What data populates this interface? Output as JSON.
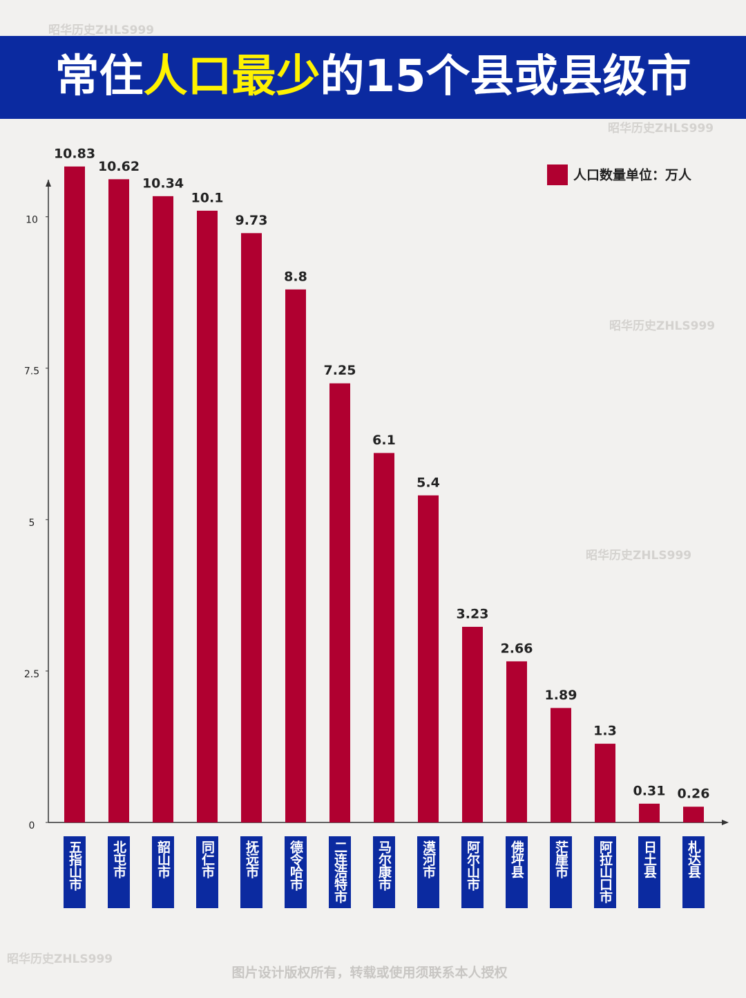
{
  "chart_data": {
    "type": "bar",
    "title_segments": [
      {
        "text": "常住",
        "color": "#ffffff"
      },
      {
        "text": "人口最少",
        "color": "#fff200"
      },
      {
        "text": "的15个县或县级市",
        "color": "#ffffff"
      }
    ],
    "categories": [
      "五指山市",
      "北屯市",
      "韶山市",
      "同仁市",
      "抚远市",
      "德令哈市",
      "二连浩特市",
      "马尔康市",
      "漠河市",
      "阿尔山市",
      "佛坪县",
      "茫崖市",
      "阿拉山口市",
      "日土县",
      "札达县"
    ],
    "series": [
      {
        "name": "人口数量单位：万人",
        "color": "#b00030",
        "values": [
          10.83,
          10.62,
          10.34,
          10.1,
          9.73,
          8.8,
          7.25,
          6.1,
          5.4,
          3.23,
          2.66,
          1.89,
          1.3,
          0.31,
          0.26
        ]
      }
    ],
    "ylim": [
      0,
      11
    ],
    "yticks": [
      0,
      2.5,
      5,
      7.5,
      10
    ],
    "legend": "top-right",
    "watermarks": [
      "昭华历史ZHLS999",
      "昭华历史ZHLS999",
      "昭华历史ZHLS999",
      "昭华历史ZHLS999",
      "昭华历史ZHLS999"
    ],
    "footer": "图片设计版权所有，转载或使用须联系本人授权"
  }
}
